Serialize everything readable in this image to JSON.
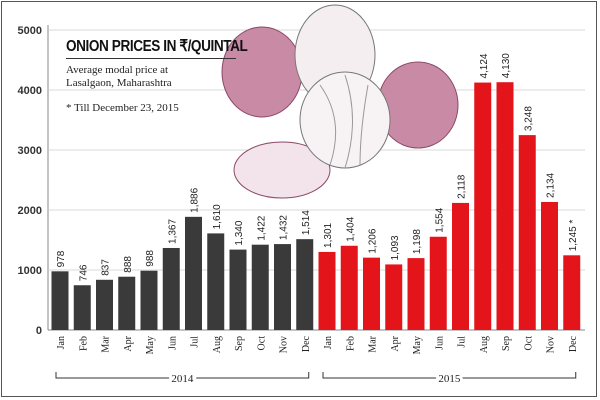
{
  "chart_data": {
    "type": "bar",
    "title": "ONION PRICES IN ₹/QUINTAL",
    "subtitle": "Average modal price at Lasalgaon, Maharashtra",
    "note": "* Till December 23, 2015",
    "xlabel": "",
    "ylabel": "",
    "ylim": [
      0,
      5000
    ],
    "yticks": [
      "0",
      "1000",
      "2000",
      "3000",
      "4000",
      "5000"
    ],
    "grid": true,
    "categories": [
      "Jan",
      "Feb",
      "Mar",
      "Apr",
      "May",
      "Jun",
      "Jul",
      "Aug",
      "Sep",
      "Oct",
      "Nov",
      "Dec"
    ],
    "series": [
      {
        "name": "2014",
        "color": "#3a3a3a",
        "values": [
          978,
          746,
          837,
          888,
          988,
          1367,
          1886,
          1610,
          1340,
          1422,
          1432,
          1514
        ],
        "labels": [
          "978",
          "746",
          "837",
          "888",
          "988",
          "1,367",
          "1,886",
          "1,610",
          "1,340",
          "1,422",
          "1,432",
          "1,514"
        ]
      },
      {
        "name": "2015",
        "color": "#e3151b",
        "values": [
          1301,
          1404,
          1206,
          1093,
          1198,
          1554,
          2118,
          4124,
          4130,
          3248,
          2134,
          1245
        ],
        "labels": [
          "1,301",
          "1,404",
          "1,206",
          "1,093",
          "1,198",
          "1,554",
          "2,118",
          "4,124",
          "4,130",
          "3,248",
          "2,134",
          "1,245 *"
        ]
      }
    ]
  }
}
